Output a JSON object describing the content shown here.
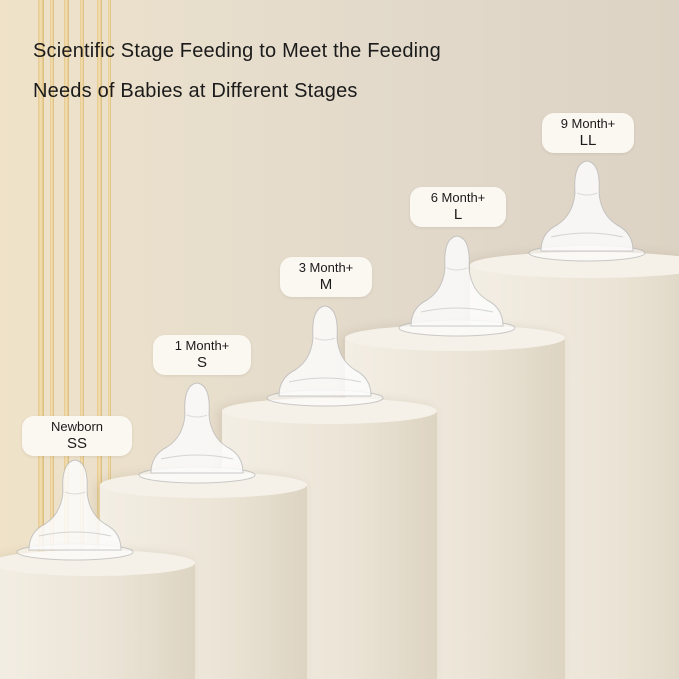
{
  "headline": {
    "line1": "Scientific Stage Feeding to Meet the Feeding",
    "line2": "Needs of Babies at Different Stages"
  },
  "stages": [
    {
      "age": "Newborn",
      "size": "SS"
    },
    {
      "age": "1 Month+",
      "size": "S"
    },
    {
      "age": "3 Month+",
      "size": "M"
    },
    {
      "age": "6 Month+",
      "size": "L"
    },
    {
      "age": "9 Month+",
      "size": "LL"
    }
  ]
}
